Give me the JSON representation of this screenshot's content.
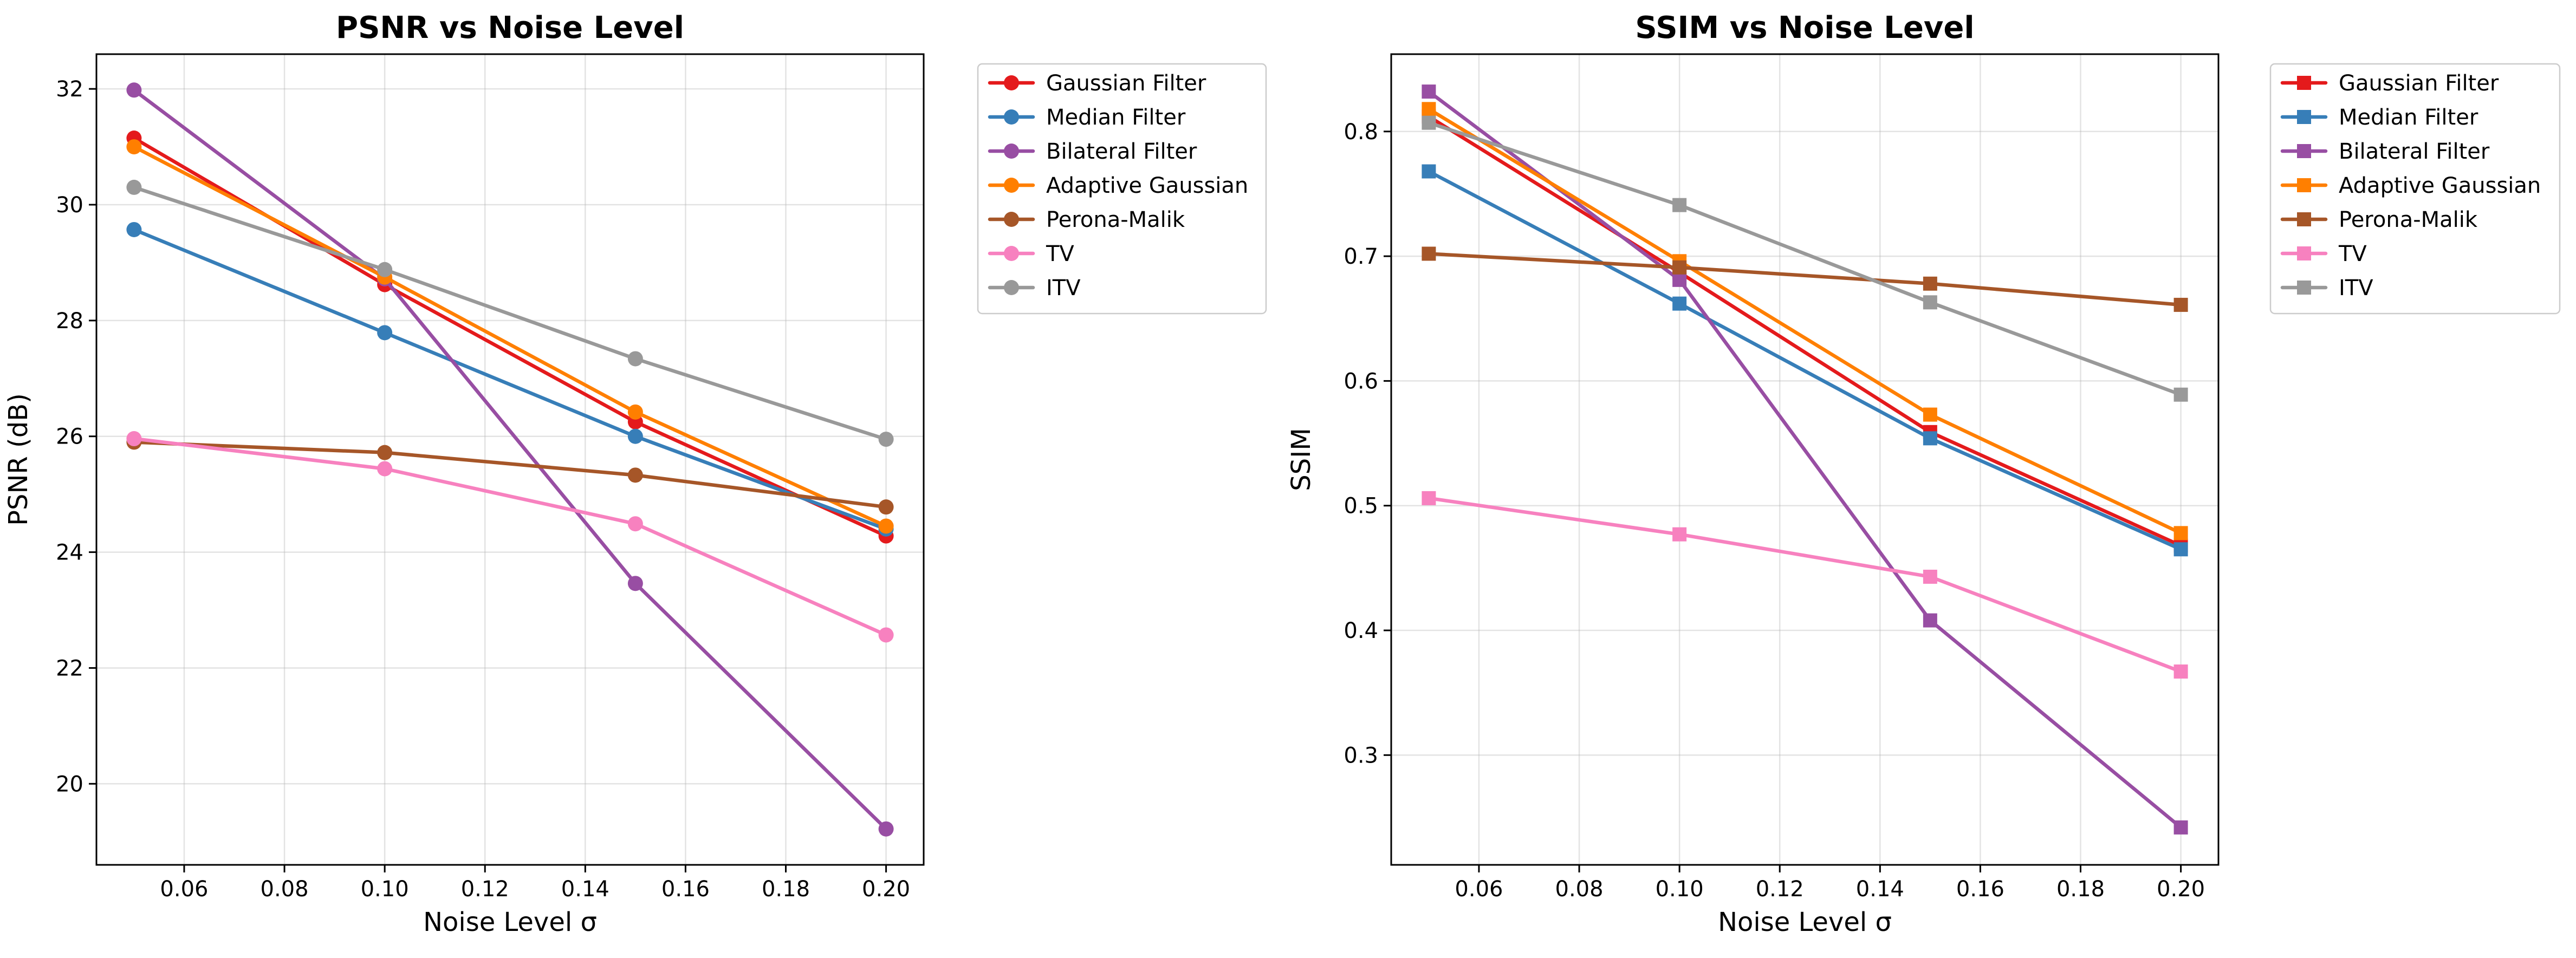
{
  "chart_data": [
    {
      "type": "line",
      "title": "PSNR vs Noise Level",
      "xlabel": "Noise Level σ",
      "ylabel": "PSNR (dB)",
      "x": [
        0.05,
        0.1,
        0.15,
        0.2
      ],
      "xlim": [
        0.0425,
        0.2075
      ],
      "ylim": [
        18.6,
        32.6
      ],
      "xticks": [
        0.06,
        0.08,
        0.1,
        0.12,
        0.14,
        0.16,
        0.18,
        0.2
      ],
      "xtick_labels": [
        "0.06",
        "0.08",
        "0.10",
        "0.12",
        "0.14",
        "0.16",
        "0.18",
        "0.20"
      ],
      "yticks": [
        20,
        22,
        24,
        26,
        28,
        30,
        32
      ],
      "ytick_labels": [
        "20",
        "22",
        "24",
        "26",
        "28",
        "30",
        "32"
      ],
      "marker": "circle",
      "grid": true,
      "legend_position": "outside-right",
      "series": [
        {
          "name": "Gaussian Filter",
          "color": "#e41a1c",
          "values": [
            31.15,
            28.62,
            26.25,
            24.28
          ]
        },
        {
          "name": "Median Filter",
          "color": "#377eb8",
          "values": [
            29.57,
            27.79,
            26.0,
            24.4
          ]
        },
        {
          "name": "Bilateral Filter",
          "color": "#984ea3",
          "values": [
            31.98,
            28.72,
            23.46,
            19.22
          ]
        },
        {
          "name": "Adaptive Gaussian",
          "color": "#ff7f00",
          "values": [
            31.0,
            28.75,
            26.42,
            24.45
          ]
        },
        {
          "name": "Perona-Malik",
          "color": "#a65628",
          "values": [
            25.9,
            25.72,
            25.33,
            24.78
          ]
        },
        {
          "name": "TV",
          "color": "#f781bf",
          "values": [
            25.96,
            25.44,
            24.49,
            22.57
          ]
        },
        {
          "name": "ITV",
          "color": "#999999",
          "values": [
            30.3,
            28.88,
            27.34,
            25.95
          ]
        }
      ]
    },
    {
      "type": "line",
      "title": "SSIM vs Noise Level",
      "xlabel": "Noise Level σ",
      "ylabel": "SSIM",
      "x": [
        0.05,
        0.1,
        0.15,
        0.2
      ],
      "xlim": [
        0.0425,
        0.2075
      ],
      "ylim": [
        0.212,
        0.862
      ],
      "xticks": [
        0.06,
        0.08,
        0.1,
        0.12,
        0.14,
        0.16,
        0.18,
        0.2
      ],
      "xtick_labels": [
        "0.06",
        "0.08",
        "0.10",
        "0.12",
        "0.14",
        "0.16",
        "0.18",
        "0.20"
      ],
      "yticks": [
        0.3,
        0.4,
        0.5,
        0.6,
        0.7,
        0.8
      ],
      "ytick_labels": [
        "0.3",
        "0.4",
        "0.5",
        "0.6",
        "0.7",
        "0.8"
      ],
      "marker": "square",
      "grid": true,
      "legend_position": "outside-right",
      "series": [
        {
          "name": "Gaussian Filter",
          "color": "#e41a1c",
          "values": [
            0.812,
            0.687,
            0.559,
            0.468
          ]
        },
        {
          "name": "Median Filter",
          "color": "#377eb8",
          "values": [
            0.768,
            0.662,
            0.554,
            0.465
          ]
        },
        {
          "name": "Bilateral Filter",
          "color": "#984ea3",
          "values": [
            0.832,
            0.681,
            0.408,
            0.242
          ]
        },
        {
          "name": "Adaptive Gaussian",
          "color": "#ff7f00",
          "values": [
            0.818,
            0.696,
            0.573,
            0.478
          ]
        },
        {
          "name": "Perona-Malik",
          "color": "#a65628",
          "values": [
            0.702,
            0.691,
            0.678,
            0.661
          ]
        },
        {
          "name": "TV",
          "color": "#f781bf",
          "values": [
            0.506,
            0.477,
            0.443,
            0.367
          ]
        },
        {
          "name": "ITV",
          "color": "#999999",
          "values": [
            0.807,
            0.741,
            0.663,
            0.589
          ]
        }
      ]
    }
  ]
}
